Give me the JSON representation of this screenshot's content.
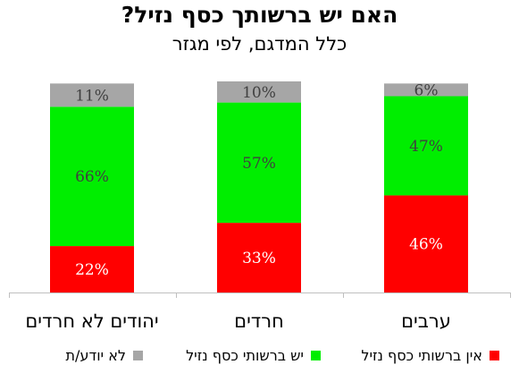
{
  "title": "האם יש ברשותך כסף נזיל?",
  "subtitle": "כלל המדגם, לפי מגזר",
  "chart_data": {
    "type": "bar",
    "stacked": true,
    "categories": [
      "יהודים לא חרדים",
      "חרדים",
      "ערבים"
    ],
    "series": [
      {
        "name": "אין ברשותי כסף נזיל",
        "color": "#ff0000",
        "values": [
          22,
          33,
          46
        ],
        "labels": [
          "22%",
          "33%",
          "46%"
        ]
      },
      {
        "name": "יש ברשותי כסף נזיל",
        "color": "#00ee00",
        "values": [
          66,
          57,
          47
        ],
        "labels": [
          "66%",
          "57%",
          "47%"
        ]
      },
      {
        "name": "לא יודע/ת",
        "color": "#a6a6a6",
        "values": [
          11,
          10,
          6
        ],
        "labels": [
          "11%",
          "10%",
          "6%"
        ]
      }
    ],
    "ylim": [
      0,
      100
    ],
    "grid": false,
    "legend_position": "bottom"
  }
}
